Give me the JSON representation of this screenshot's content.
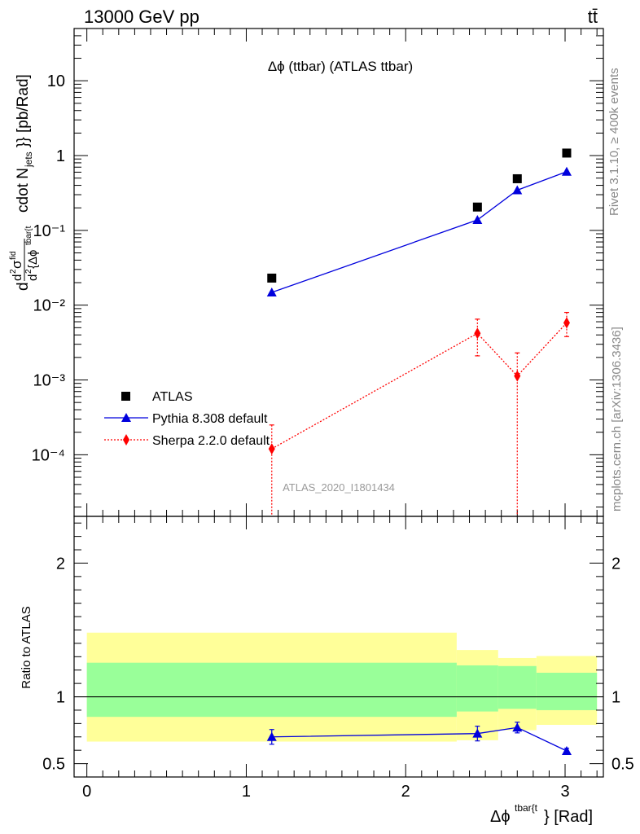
{
  "header": {
    "left": "13000 GeV pp",
    "right": "tt̄"
  },
  "side": {
    "top": "Rivet 3.1.10, ≥ 400k events",
    "bottom": "mcplots.cern.ch [arXiv:1306.3436]"
  },
  "chart_data": [
    {
      "type": "line",
      "panel": "main",
      "title": "Δϕ (ttbar) (ATLAS ttbar)",
      "ylabel": "d²σfid / d²{Δϕtbar{t}} cdot Njets}} [pb/Rad]",
      "yscale": "log",
      "ylim": [
        1.5e-05,
        50
      ],
      "xlim": [
        -0.08,
        3.24
      ],
      "y_tick_labels": [
        "10",
        "1",
        "10⁻¹",
        "10⁻²",
        "10⁻³",
        "10⁻⁴"
      ],
      "watermark": "ATLAS_2020_I1801434",
      "legend": {
        "position": "bottom-left",
        "entries": [
          "ATLAS",
          "Pythia 8.308 default",
          "Sherpa 2.2.0 default"
        ]
      },
      "series": [
        {
          "name": "ATLAS",
          "color": "#000000",
          "marker": "square",
          "x": [
            1.16,
            2.45,
            2.7,
            3.01
          ],
          "y": [
            0.023,
            0.205,
            0.49,
            1.08
          ]
        },
        {
          "name": "Pythia 8.308 default",
          "color": "#0000dd",
          "marker": "triangle",
          "line": "solid",
          "x": [
            1.16,
            2.45,
            2.7,
            3.01
          ],
          "y": [
            0.0148,
            0.138,
            0.345,
            0.61
          ]
        },
        {
          "name": "Sherpa 2.2.0 default",
          "color": "#ff0000",
          "marker": "diamond",
          "line": "dotted",
          "x": [
            1.16,
            2.45,
            2.7,
            3.01
          ],
          "y": [
            0.00012,
            0.0042,
            0.00113,
            0.0058
          ],
          "err_low": [
            0.00012,
            0.0021,
            0.00113,
            0.002
          ],
          "err_high": [
            0.00013,
            0.0023,
            0.00117,
            0.0022
          ]
        }
      ]
    },
    {
      "type": "line",
      "panel": "ratio",
      "ylabel": "Ratio to ATLAS",
      "xlabel": "Δϕtbar{t}} [Rad]",
      "ylim": [
        0.4,
        2.35
      ],
      "xlim": [
        -0.08,
        3.24
      ],
      "y_ticks": [
        0.5,
        1,
        2
      ],
      "x_ticks": [
        0,
        1,
        2,
        3
      ],
      "bands": [
        {
          "x0": 0.0,
          "x1": 2.32,
          "yellow": [
            0.665,
            1.48
          ],
          "green": [
            0.85,
            1.255
          ]
        },
        {
          "x0": 2.32,
          "x1": 2.58,
          "yellow": [
            0.675,
            1.35
          ],
          "green": [
            0.89,
            1.235
          ]
        },
        {
          "x0": 2.58,
          "x1": 2.82,
          "yellow": [
            0.75,
            1.29
          ],
          "green": [
            0.91,
            1.23
          ]
        },
        {
          "x0": 2.82,
          "x1": 3.2,
          "yellow": [
            0.79,
            1.305
          ],
          "green": [
            0.9,
            1.18
          ]
        }
      ],
      "series": [
        {
          "name": "Pythia 8.308 default",
          "color": "#0000dd",
          "x": [
            1.16,
            2.45,
            2.7,
            3.01
          ],
          "y": [
            0.7,
            0.725,
            0.77,
            0.595
          ],
          "err": [
            0.055,
            0.055,
            0.04,
            0.02
          ]
        }
      ]
    }
  ]
}
